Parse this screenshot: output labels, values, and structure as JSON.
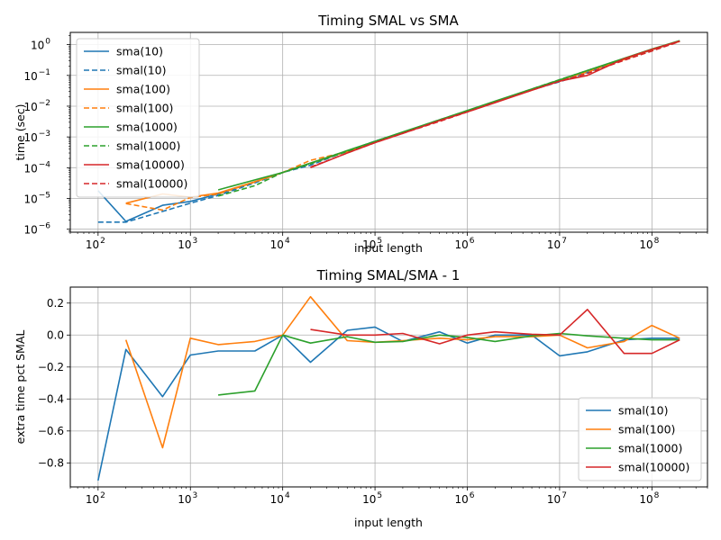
{
  "chart_data": [
    {
      "type": "line",
      "title": "Timing SMAL vs SMA",
      "xlabel": "input length",
      "ylabel": "time (sec)",
      "xscale": "log",
      "yscale": "log",
      "xlim": [
        50,
        400000000
      ],
      "ylim": [
        8e-07,
        2.5
      ],
      "x_ticks": [
        {
          "label": "10",
          "exp": "2"
        },
        {
          "label": "10",
          "exp": "3"
        },
        {
          "label": "10",
          "exp": "4"
        },
        {
          "label": "10",
          "exp": "5"
        },
        {
          "label": "10",
          "exp": "6"
        },
        {
          "label": "10",
          "exp": "7"
        },
        {
          "label": "10",
          "exp": "8"
        }
      ],
      "y_ticks": [
        {
          "label": "10",
          "exp": "−6"
        },
        {
          "label": "10",
          "exp": "−5"
        },
        {
          "label": "10",
          "exp": "−4"
        },
        {
          "label": "10",
          "exp": "−3"
        },
        {
          "label": "10",
          "exp": "−2"
        },
        {
          "label": "10",
          "exp": "−1"
        },
        {
          "label": "10",
          "exp": "0"
        }
      ],
      "grid": true,
      "legend_position": "top-left",
      "series": [
        {
          "name": "sma(10)",
          "color": "#1f77b4",
          "style": "solid",
          "x": [
            100,
            200,
            500,
            1000,
            2000,
            5000,
            10000,
            20000,
            50000,
            100000,
            200000,
            500000,
            1000000,
            2000000,
            5000000,
            10000000,
            20000000,
            50000000,
            100000000,
            200000000
          ],
          "y": [
            1.8e-05,
            1.8e-06,
            6e-06,
            8e-06,
            1.4e-05,
            3.5e-05,
            7e-05,
            0.00014,
            0.00034,
            0.0007,
            0.0014,
            0.0035,
            0.007,
            0.014,
            0.034,
            0.07,
            0.14,
            0.34,
            0.68,
            1.3
          ]
        },
        {
          "name": "smal(10)",
          "color": "#1f77b4",
          "style": "dashed",
          "x": [
            100,
            200,
            500,
            1000,
            2000,
            5000,
            10000,
            20000,
            50000,
            100000,
            200000,
            500000,
            1000000,
            2000000,
            5000000,
            10000000,
            20000000,
            50000000,
            100000000,
            200000000
          ],
          "y": [
            1.7e-06,
            1.7e-06,
            3.8e-06,
            7e-06,
            1.25e-05,
            3.2e-05,
            7e-05,
            0.00012,
            0.00035,
            0.00073,
            0.0014,
            0.0036,
            0.0068,
            0.014,
            0.034,
            0.062,
            0.125,
            0.33,
            0.67,
            1.3
          ]
        },
        {
          "name": "sma(100)",
          "color": "#ff7f0e",
          "style": "solid",
          "x": [
            200,
            500,
            1000,
            2000,
            5000,
            10000,
            20000,
            50000,
            100000,
            200000,
            500000,
            1000000,
            2000000,
            5000000,
            10000000,
            20000000,
            50000000,
            100000000,
            200000000
          ],
          "y": [
            7e-06,
            1.4e-05,
            1.1e-05,
            1.5e-05,
            3.5e-05,
            7e-05,
            0.00014,
            0.00034,
            0.0007,
            0.0014,
            0.0035,
            0.007,
            0.014,
            0.034,
            0.07,
            0.14,
            0.34,
            0.68,
            1.3
          ]
        },
        {
          "name": "smal(100)",
          "color": "#ff7f0e",
          "style": "dashed",
          "x": [
            200,
            500,
            1000,
            2000,
            5000,
            10000,
            20000,
            50000,
            100000,
            200000,
            500000,
            1000000,
            2000000,
            5000000,
            10000000,
            20000000,
            50000000,
            100000000,
            200000000
          ],
          "y": [
            6.8e-06,
            4.2e-06,
            1.08e-05,
            1.4e-05,
            3.4e-05,
            7e-05,
            0.000174,
            0.00033,
            0.00067,
            0.00135,
            0.0034,
            0.0066,
            0.0135,
            0.033,
            0.07,
            0.13,
            0.33,
            0.7,
            1.27
          ]
        },
        {
          "name": "sma(1000)",
          "color": "#2ca02c",
          "style": "solid",
          "x": [
            2000,
            5000,
            10000,
            20000,
            50000,
            100000,
            200000,
            500000,
            1000000,
            2000000,
            5000000,
            10000000,
            20000000,
            50000000,
            100000000,
            200000000
          ],
          "y": [
            1.9e-05,
            4e-05,
            7e-05,
            0.00014,
            0.00036,
            0.00072,
            0.00145,
            0.0036,
            0.0072,
            0.0145,
            0.036,
            0.072,
            0.145,
            0.36,
            0.72,
            1.35
          ]
        },
        {
          "name": "smal(1000)",
          "color": "#2ca02c",
          "style": "dashed",
          "x": [
            2000,
            5000,
            10000,
            20000,
            50000,
            100000,
            200000,
            500000,
            1000000,
            2000000,
            5000000,
            10000000,
            20000000,
            50000000,
            100000000,
            200000000
          ],
          "y": [
            1.2e-05,
            2.6e-05,
            7e-05,
            0.000133,
            0.00034,
            0.00069,
            0.00139,
            0.0036,
            0.0071,
            0.0139,
            0.036,
            0.073,
            0.144,
            0.35,
            0.7,
            1.31
          ]
        },
        {
          "name": "sma(10000)",
          "color": "#d62728",
          "style": "solid",
          "x": [
            20000,
            50000,
            100000,
            200000,
            500000,
            1000000,
            2000000,
            5000000,
            10000000,
            20000000,
            50000000,
            100000000,
            200000000
          ],
          "y": [
            0.0001,
            0.0003,
            0.00065,
            0.0013,
            0.0034,
            0.0065,
            0.013,
            0.033,
            0.065,
            0.1,
            0.35,
            0.7,
            1.3
          ]
        },
        {
          "name": "smal(10000)",
          "color": "#d62728",
          "style": "dashed",
          "x": [
            20000,
            50000,
            100000,
            200000,
            500000,
            1000000,
            2000000,
            5000000,
            10000000,
            20000000,
            50000000,
            100000000,
            200000000
          ],
          "y": [
            0.000104,
            0.0003,
            0.00065,
            0.00131,
            0.0032,
            0.0065,
            0.0133,
            0.033,
            0.065,
            0.116,
            0.31,
            0.62,
            1.27
          ]
        }
      ]
    },
    {
      "type": "line",
      "title": "Timing SMAL/SMA - 1",
      "xlabel": "input length",
      "ylabel": "extra time pct SMAL",
      "xscale": "log",
      "yscale": "linear",
      "xlim": [
        50,
        400000000
      ],
      "ylim": [
        -0.95,
        0.3
      ],
      "x_ticks": [
        {
          "label": "10",
          "exp": "2"
        },
        {
          "label": "10",
          "exp": "3"
        },
        {
          "label": "10",
          "exp": "4"
        },
        {
          "label": "10",
          "exp": "5"
        },
        {
          "label": "10",
          "exp": "6"
        },
        {
          "label": "10",
          "exp": "7"
        },
        {
          "label": "10",
          "exp": "8"
        }
      ],
      "y_ticks": [
        "−0.8",
        "−0.6",
        "−0.4",
        "−0.2",
        "0.0",
        "0.2"
      ],
      "grid": true,
      "legend_position": "lower-right",
      "series": [
        {
          "name": "smal(10)",
          "color": "#1f77b4",
          "style": "solid",
          "x": [
            100,
            200,
            500,
            1000,
            2000,
            5000,
            10000,
            20000,
            50000,
            100000,
            200000,
            500000,
            1000000,
            2000000,
            5000000,
            10000000,
            20000000,
            50000000,
            100000000,
            200000000
          ],
          "y": [
            -0.91,
            -0.09,
            -0.385,
            -0.125,
            -0.1,
            -0.1,
            0.0,
            -0.17,
            0.03,
            0.05,
            -0.04,
            0.02,
            -0.05,
            0.0,
            0.0,
            -0.13,
            -0.105,
            -0.03,
            -0.02,
            -0.02
          ]
        },
        {
          "name": "smal(100)",
          "color": "#ff7f0e",
          "style": "solid",
          "x": [
            200,
            500,
            1000,
            2000,
            5000,
            10000,
            20000,
            50000,
            100000,
            200000,
            500000,
            1000000,
            2000000,
            5000000,
            10000000,
            20000000,
            50000000,
            100000000,
            200000000
          ],
          "y": [
            -0.03,
            -0.705,
            -0.02,
            -0.06,
            -0.04,
            0.0,
            0.24,
            -0.035,
            -0.045,
            -0.035,
            -0.02,
            -0.03,
            -0.01,
            -0.01,
            0.0,
            -0.08,
            -0.04,
            0.06,
            -0.02
          ]
        },
        {
          "name": "smal(1000)",
          "color": "#2ca02c",
          "style": "solid",
          "x": [
            2000,
            5000,
            10000,
            20000,
            50000,
            100000,
            200000,
            500000,
            1000000,
            2000000,
            5000000,
            10000000,
            20000000,
            50000000,
            100000000,
            200000000
          ],
          "y": [
            -0.375,
            -0.35,
            0.0,
            -0.05,
            -0.01,
            -0.045,
            -0.04,
            0.0,
            -0.015,
            -0.04,
            -0.005,
            0.01,
            -0.005,
            -0.02,
            -0.03,
            -0.03
          ]
        },
        {
          "name": "smal(10000)",
          "color": "#d62728",
          "style": "solid",
          "x": [
            20000,
            50000,
            100000,
            200000,
            500000,
            1000000,
            2000000,
            5000000,
            10000000,
            20000000,
            50000000,
            100000000,
            200000000
          ],
          "y": [
            0.035,
            0.0,
            0.0,
            0.01,
            -0.055,
            0.0,
            0.02,
            0.005,
            0.0,
            0.16,
            -0.115,
            -0.115,
            -0.03
          ]
        }
      ]
    }
  ]
}
